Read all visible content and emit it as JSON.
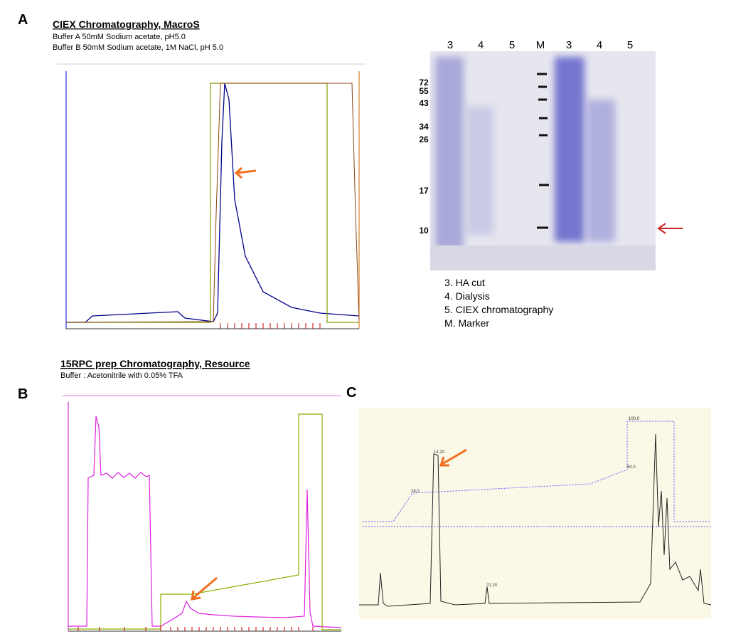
{
  "panel_a": {
    "label": "A",
    "title": "CIEX Chromatography, MacroS",
    "buffers": [
      "Buffer A 50mM Sodium acetate,  pH5.0",
      "Buffer B 50mM Sodium acetate, 1M NaCl, pH 5.0"
    ]
  },
  "gel": {
    "lanes": [
      "3",
      "4",
      "5",
      "M",
      "3",
      "4",
      "5"
    ],
    "markers": [
      "72",
      "55",
      "43",
      "34",
      "26",
      "17",
      "10"
    ],
    "legend": [
      "3. HA cut",
      "4. Dialysis",
      "5. CIEX chromatography",
      "M. Marker"
    ]
  },
  "panel_b": {
    "label": "B",
    "title": "15RPC prep Chromatography, Resource",
    "buffer": "Buffer : Acetonitrile  with 0.05% TFA"
  },
  "panel_c": {
    "label": "C",
    "annotations": [
      "14.20",
      "21.20",
      "28.0",
      "50.0",
      "100.0"
    ]
  }
}
